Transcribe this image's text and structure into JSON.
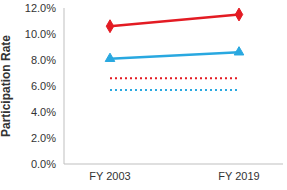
{
  "chart_data": {
    "type": "line",
    "y_label": "Participation Rate",
    "categories": [
      "FY 2003",
      "FY 2019"
    ],
    "series": [
      {
        "color": "#e31b23",
        "values": [
          10.6,
          11.5
        ],
        "marker": "diamond",
        "line_style": "solid"
      },
      {
        "color": "#29a8e0",
        "values": [
          8.1,
          8.6
        ],
        "marker": "triangle",
        "line_style": "solid"
      },
      {
        "color": "#e31b23",
        "values": [
          6.6,
          6.6
        ],
        "marker": "none",
        "line_style": "dotted"
      },
      {
        "color": "#29a8e0",
        "values": [
          5.7,
          5.7
        ],
        "marker": "none",
        "line_style": "dotted"
      }
    ],
    "ylim": [
      0,
      12
    ],
    "yticks": [
      {
        "value": 0,
        "label": "0.0%"
      },
      {
        "value": 2,
        "label": "2.0%"
      },
      {
        "value": 4,
        "label": "4.0%"
      },
      {
        "value": 6,
        "label": "6.0%"
      },
      {
        "value": 8,
        "label": "8.0%"
      },
      {
        "value": 10,
        "label": "10.0%"
      },
      {
        "value": 12,
        "label": "12.0%"
      }
    ],
    "grid": false
  }
}
